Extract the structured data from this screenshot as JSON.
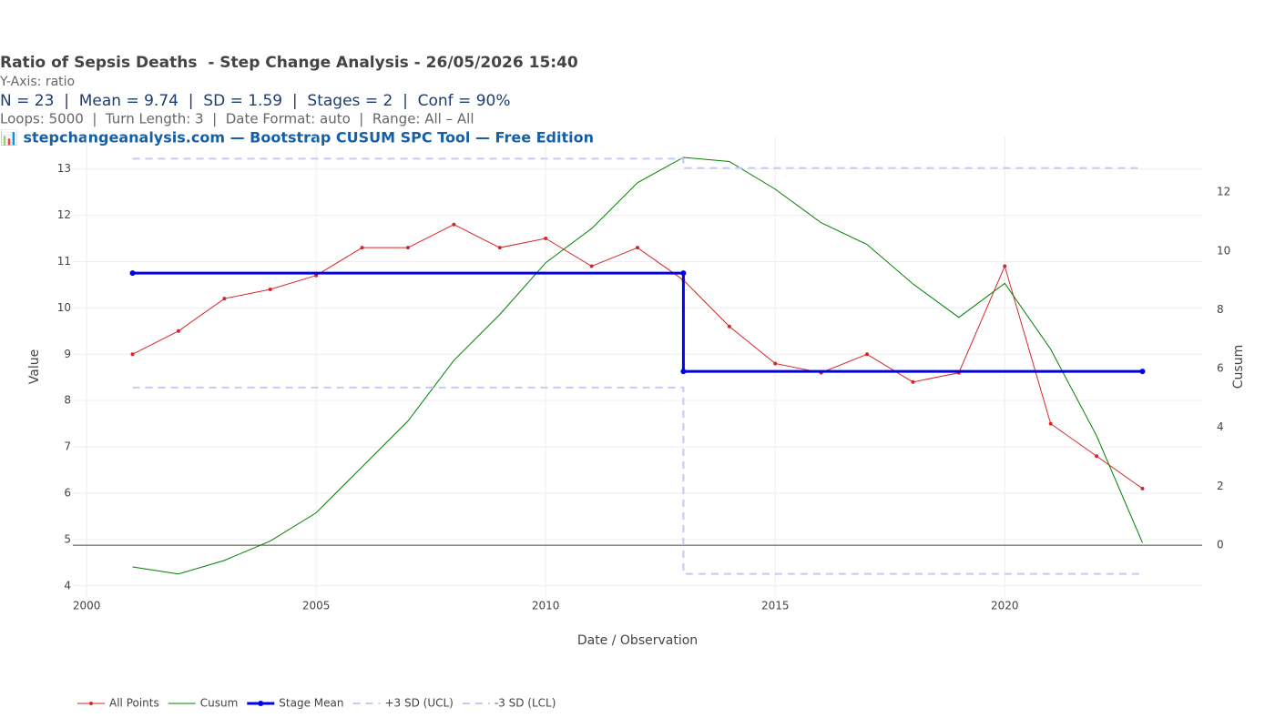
{
  "chart_data": {
    "type": "line",
    "title": "Ratio of Sepsis Deaths  - Step Change Analysis - 26/05/2026 15:40",
    "subtitle": "Y-Axis: ratio",
    "stats": "N = 23  |  Mean = 9.74  |  SD = 1.59  |  Stages = 2  |  Conf = 90%",
    "settings": "Loops: 5000  |  Turn Length: 3  |  Date Format: auto  |  Range: All – All",
    "source": "📊 stepchangeanalysis.com — Bootstrap CUSUM SPC Tool — Free Edition",
    "x_label": "Date / Observation",
    "y_label": "Value",
    "y2_label": "Cusum",
    "x": [
      2001,
      2002,
      2003,
      2004,
      2005,
      2006,
      2007,
      2008,
      2009,
      2010,
      2011,
      2012,
      2013,
      2014,
      2015,
      2016,
      2017,
      2018,
      2019,
      2020,
      2021,
      2022,
      2023
    ],
    "series": [
      {
        "name": "All Points",
        "color": "#d62728",
        "width": 1,
        "markers": true,
        "values": [
          9.0,
          9.5,
          10.2,
          10.4,
          10.7,
          11.3,
          11.3,
          11.8,
          11.3,
          11.5,
          10.9,
          11.3,
          10.6,
          9.6,
          8.8,
          8.6,
          9.0,
          8.4,
          8.6,
          10.9,
          7.5,
          6.8,
          6.1
        ]
      },
      {
        "name": "Cusum",
        "color": "#008000",
        "width": 1,
        "axis": "y2",
        "values": [
          -0.74,
          -0.98,
          -0.52,
          0.14,
          1.1,
          2.66,
          4.22,
          6.28,
          7.84,
          9.6,
          10.76,
          12.32,
          13.18,
          13.04,
          12.1,
          10.96,
          10.22,
          8.88,
          7.74,
          8.9,
          6.66,
          3.72,
          0.08
        ]
      },
      {
        "name": "Stage Mean",
        "color": "#0000ee",
        "width": 3,
        "markers": true,
        "x": [
          2001,
          2013,
          2013,
          2023
        ],
        "values": [
          10.75,
          10.75,
          8.63,
          8.63
        ]
      },
      {
        "name": "+3 SD (UCL)",
        "color": "#c8c8f5",
        "width": 2,
        "dash": true,
        "x": [
          2001,
          2013,
          2013,
          2023
        ],
        "values": [
          13.22,
          13.22,
          13.02,
          13.02
        ]
      },
      {
        "name": "-3 SD (LCL)",
        "color": "#c8c8f5",
        "width": 2,
        "dash": true,
        "x": [
          2001,
          2013,
          2013,
          2023
        ],
        "values": [
          8.28,
          8.28,
          4.26,
          4.26
        ]
      }
    ],
    "xlim": [
      1999.7,
      2024.3
    ],
    "xticks": [
      2000,
      2005,
      2010,
      2015,
      2020
    ],
    "ylim": [
      3.78,
      13.7
    ],
    "yticks": [
      4,
      5,
      6,
      7,
      8,
      9,
      10,
      11,
      12,
      13
    ],
    "y2lim": [
      -1.73,
      13.89
    ],
    "y2ticks": [
      0,
      2,
      4,
      6,
      8,
      10,
      12
    ],
    "grid": true,
    "legend": "bottom-left"
  }
}
